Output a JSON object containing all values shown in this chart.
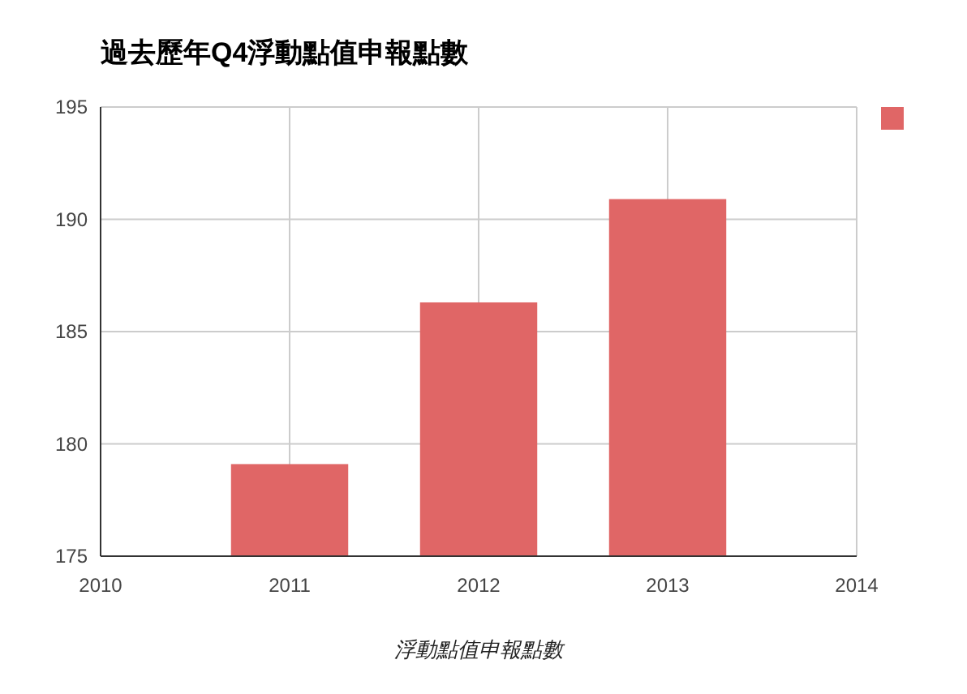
{
  "chart_data": {
    "type": "bar",
    "title": "過去歷年Q4浮動點值申報點數",
    "xlabel": "浮動點值申報點數",
    "x": [
      2011,
      2012,
      2013
    ],
    "series": [
      {
        "color": "#e06666",
        "values": [
          179.1,
          186.3,
          190.9
        ]
      }
    ],
    "xlim": [
      2010,
      2014
    ],
    "xticks": [
      2010,
      2011,
      2012,
      2013,
      2014
    ],
    "ylim": [
      175,
      195
    ],
    "yticks": [
      175,
      180,
      185,
      190,
      195
    ],
    "grid": true
  }
}
